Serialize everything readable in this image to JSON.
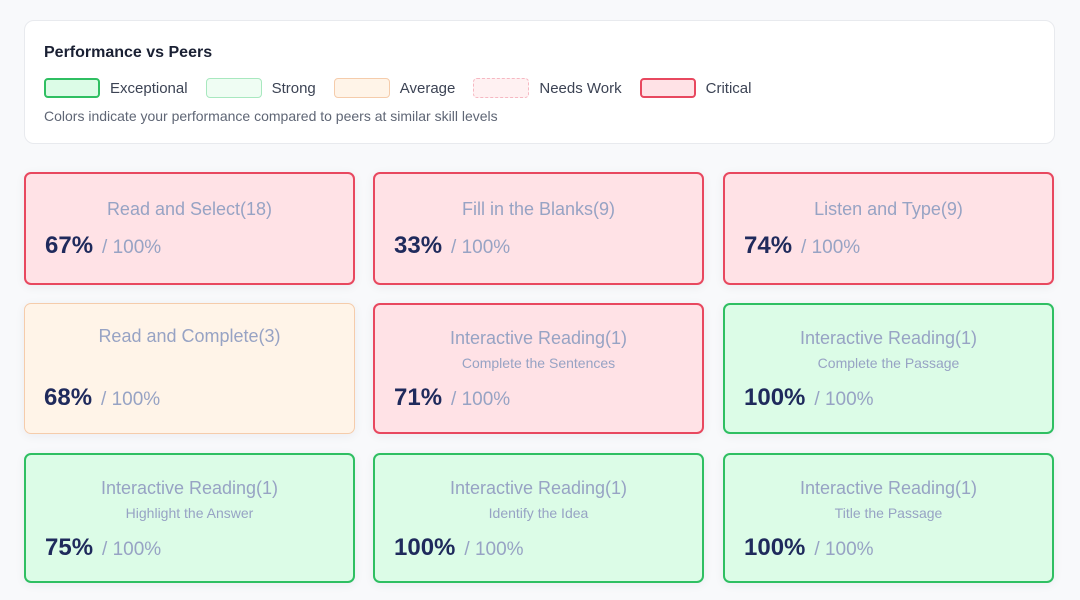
{
  "legend": {
    "title": "Performance vs Peers",
    "items": [
      {
        "label": "Exceptional",
        "fill": "#dcfce7",
        "border": "#2fbf62"
      },
      {
        "label": "Strong",
        "fill": "#effdf3",
        "border": "#a8e8bf"
      },
      {
        "label": "Average",
        "fill": "#fff4e8",
        "border": "#f5ccab"
      },
      {
        "label": "Needs Work",
        "fill": "#fff1f2",
        "border": "#f6b8c2"
      },
      {
        "label": "Critical",
        "fill": "#ffe2e6",
        "border": "#e8485f"
      }
    ],
    "note": "Colors indicate your performance compared to peers at similar skill levels"
  },
  "cards": [
    {
      "title": "Read and Select(18)",
      "subtitle": "",
      "score": "67%",
      "max": "/ 100%",
      "status": "critical"
    },
    {
      "title": "Fill in the Blanks(9)",
      "subtitle": "",
      "score": "33%",
      "max": "/ 100%",
      "status": "critical"
    },
    {
      "title": "Listen and Type(9)",
      "subtitle": "",
      "score": "74%",
      "max": "/ 100%",
      "status": "critical"
    },
    {
      "title": "Read and Complete(3)",
      "subtitle": "",
      "score": "68%",
      "max": "/ 100%",
      "status": "average"
    },
    {
      "title": "Interactive Reading(1)",
      "subtitle": "Complete the Sentences",
      "score": "71%",
      "max": "/ 100%",
      "status": "critical"
    },
    {
      "title": "Interactive Reading(1)",
      "subtitle": "Complete the Passage",
      "score": "100%",
      "max": "/ 100%",
      "status": "exceptional"
    },
    {
      "title": "Interactive Reading(1)",
      "subtitle": "Highlight the Answer",
      "score": "75%",
      "max": "/ 100%",
      "status": "exceptional"
    },
    {
      "title": "Interactive Reading(1)",
      "subtitle": "Identify the Idea",
      "score": "100%",
      "max": "/ 100%",
      "status": "exceptional"
    },
    {
      "title": "Interactive Reading(1)",
      "subtitle": "Title the Passage",
      "score": "100%",
      "max": "/ 100%",
      "status": "exceptional"
    }
  ]
}
